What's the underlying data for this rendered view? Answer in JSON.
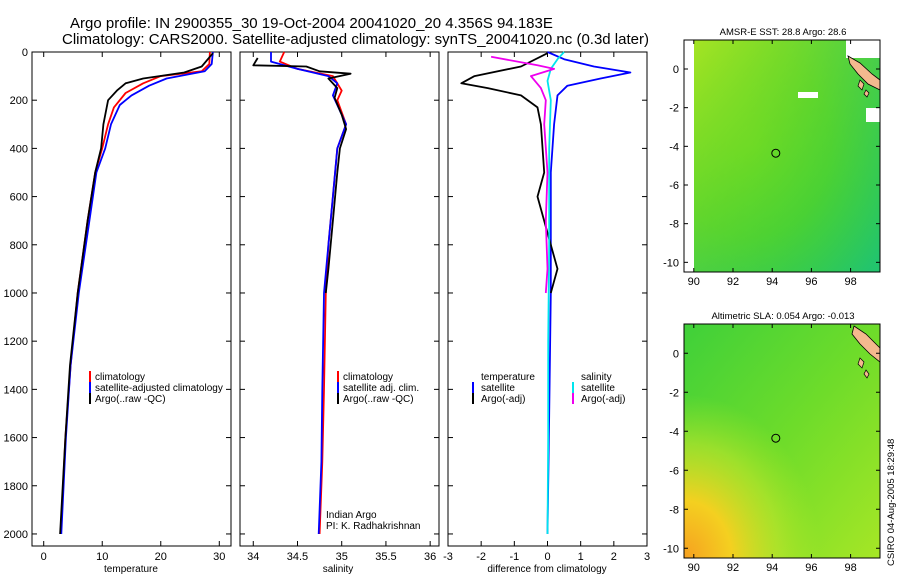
{
  "title": {
    "line1": "Argo profile: IN 2900355_30 19-Oct-2004 20041020_20 4.356S 94.183E",
    "line2": "Climatology: CARS2000. Satellite-adjusted climatology: synTS_20041020.nc (0.3d later)"
  },
  "credit": "CSIRO 04-Aug-2005 18:29:48",
  "colors": {
    "climatology": "#ff0000",
    "satellite": "#0000ff",
    "argo": "#000000",
    "salinity": "#00e5ee",
    "salinity_argo": "#ee00ee"
  },
  "chart_data": [
    {
      "id": "temperature",
      "type": "line",
      "xlabel": "temperature",
      "ylabel": "",
      "xlim": [
        -2,
        32
      ],
      "ylim": [
        2050,
        0
      ],
      "xticks": [
        0,
        10,
        20,
        30
      ],
      "xtick_labels": [
        "0",
        "10",
        "20",
        "30"
      ],
      "yticks": [
        0,
        200,
        400,
        600,
        800,
        1000,
        1200,
        1400,
        1600,
        1800,
        2000
      ],
      "ytick_labels": [
        "0",
        "200",
        "400",
        "600",
        "800",
        "1000",
        "1200",
        "1400",
        "1600",
        "1800",
        "2000"
      ],
      "legend": [
        "climatology",
        "satellite-adjusted climatology",
        "Argo(..raw -QC)"
      ],
      "series": [
        {
          "name": "climatology",
          "color": "#ff0000",
          "points": [
            [
              28.4,
              0
            ],
            [
              28.3,
              50
            ],
            [
              27.0,
              80
            ],
            [
              20.0,
              100
            ],
            [
              17.0,
              130
            ],
            [
              14.0,
              170
            ],
            [
              12.0,
              230
            ],
            [
              11.0,
              300
            ],
            [
              10.0,
              400
            ],
            [
              8.8,
              500
            ],
            [
              7.5,
              700
            ],
            [
              5.8,
              1000
            ],
            [
              4.6,
              1300
            ],
            [
              3.7,
              1600
            ],
            [
              2.9,
              2000
            ]
          ]
        },
        {
          "name": "satellite-adjusted climatology",
          "color": "#0000ff",
          "points": [
            [
              28.9,
              0
            ],
            [
              28.7,
              50
            ],
            [
              27.5,
              80
            ],
            [
              21.0,
              110
            ],
            [
              18.0,
              140
            ],
            [
              15.0,
              180
            ],
            [
              13.0,
              220
            ],
            [
              11.5,
              300
            ],
            [
              10.5,
              400
            ],
            [
              9.0,
              500
            ],
            [
              7.8,
              700
            ],
            [
              6.0,
              1000
            ],
            [
              4.6,
              1300
            ],
            [
              3.8,
              1600
            ],
            [
              3.0,
              2000
            ]
          ]
        },
        {
          "name": "Argo(..raw -QC)",
          "color": "#000000",
          "points": [
            [
              28.9,
              5
            ],
            [
              27.0,
              60
            ],
            [
              24.0,
              85
            ],
            [
              17.0,
              110
            ],
            [
              14.0,
              130
            ],
            [
              12.5,
              160
            ],
            [
              11.0,
              200
            ],
            [
              10.2,
              300
            ],
            [
              9.8,
              400
            ],
            [
              8.8,
              500
            ],
            [
              7.5,
              700
            ],
            [
              5.8,
              1000
            ],
            [
              4.5,
              1300
            ],
            [
              3.7,
              1600
            ],
            [
              2.8,
              2000
            ]
          ]
        }
      ]
    },
    {
      "id": "salinity",
      "type": "line",
      "xlabel": "salinity",
      "xlim": [
        33.85,
        36.1
      ],
      "ylim": [
        2050,
        0
      ],
      "xticks": [
        34,
        34.5,
        35,
        35.5,
        36
      ],
      "xtick_labels": [
        "34",
        "34.5",
        "35",
        "35.5",
        "36"
      ],
      "legend": [
        "climatology",
        "satellite adj. clim.",
        "Argo(..raw -QC)"
      ],
      "annotation": [
        "Indian Argo",
        "PI: K. Radhakrishnan"
      ],
      "series": [
        {
          "name": "climatology",
          "color": "#ff0000",
          "points": [
            [
              34.35,
              0
            ],
            [
              34.3,
              40
            ],
            [
              34.5,
              70
            ],
            [
              34.9,
              100
            ],
            [
              35.0,
              160
            ],
            [
              34.95,
              200
            ],
            [
              35.05,
              300
            ],
            [
              34.95,
              400
            ],
            [
              34.9,
              600
            ],
            [
              34.85,
              800
            ],
            [
              34.82,
              1000
            ],
            [
              34.8,
              1400
            ],
            [
              34.78,
              1700
            ],
            [
              34.75,
              2000
            ]
          ]
        },
        {
          "name": "satellite adj. clim.",
          "color": "#0000ff",
          "points": [
            [
              34.2,
              0
            ],
            [
              34.2,
              40
            ],
            [
              34.5,
              70
            ],
            [
              34.85,
              100
            ],
            [
              34.95,
              130
            ],
            [
              34.9,
              180
            ],
            [
              35.05,
              300
            ],
            [
              34.95,
              400
            ],
            [
              34.9,
              600
            ],
            [
              34.85,
              800
            ],
            [
              34.8,
              1000
            ],
            [
              34.78,
              1400
            ],
            [
              34.77,
              1700
            ],
            [
              34.74,
              2000
            ]
          ]
        },
        {
          "name": "Argo(..raw -QC)",
          "color": "#000000",
          "points": [
            [
              34.05,
              25
            ],
            [
              34.0,
              55
            ],
            [
              34.6,
              60
            ],
            [
              34.75,
              80
            ],
            [
              35.1,
              90
            ],
            [
              34.85,
              110
            ],
            [
              34.95,
              150
            ],
            [
              34.92,
              190
            ],
            [
              35.0,
              260
            ],
            [
              35.05,
              320
            ],
            [
              34.98,
              400
            ],
            [
              34.95,
              500
            ],
            [
              34.9,
              700
            ],
            [
              34.85,
              900
            ],
            [
              34.82,
              1000
            ]
          ]
        }
      ]
    },
    {
      "id": "difference",
      "type": "line",
      "xlabel": "difference from climatology",
      "xlim": [
        -3,
        3
      ],
      "ylim": [
        2050,
        0
      ],
      "xticks": [
        -3,
        -2,
        -1,
        0,
        1,
        2,
        3
      ],
      "xtick_labels": [
        "-3",
        "-2",
        "-1",
        "0",
        "1",
        "2",
        "3"
      ],
      "legend_left_title": "temperature",
      "legend_left": [
        "satellite",
        "Argo(-adj)"
      ],
      "legend_right_title": "salinity",
      "legend_right": [
        "satellite",
        "Argo(-adj)"
      ],
      "series": [
        {
          "name": "temperature satellite",
          "color": "#0000ff",
          "points": [
            [
              0,
              0
            ],
            [
              0.5,
              30
            ],
            [
              1.4,
              60
            ],
            [
              2.5,
              85
            ],
            [
              1.6,
              110
            ],
            [
              0.6,
              140
            ],
            [
              0.3,
              180
            ],
            [
              0.2,
              300
            ],
            [
              0.1,
              500
            ],
            [
              0.1,
              1000
            ],
            [
              0.05,
              1500
            ],
            [
              0,
              2000
            ]
          ]
        },
        {
          "name": "temperature Argo(-adj)",
          "color": "#000000",
          "points": [
            [
              0,
              5
            ],
            [
              -0.8,
              60
            ],
            [
              -2.2,
              100
            ],
            [
              -2.6,
              130
            ],
            [
              -1.8,
              150
            ],
            [
              -0.8,
              180
            ],
            [
              -0.3,
              230
            ],
            [
              -0.2,
              300
            ],
            [
              -0.1,
              500
            ],
            [
              -0.3,
              600
            ],
            [
              0.1,
              800
            ],
            [
              0.3,
              900
            ],
            [
              0.1,
              1000
            ]
          ]
        },
        {
          "name": "salinity satellite",
          "color": "#00e5ee",
          "points": [
            [
              0.5,
              0
            ],
            [
              0.3,
              30
            ],
            [
              0.1,
              70
            ],
            [
              0.0,
              120
            ],
            [
              0.1,
              200
            ],
            [
              0.05,
              400
            ],
            [
              0.05,
              800
            ],
            [
              0.02,
              1200
            ],
            [
              0.02,
              1600
            ],
            [
              0,
              2000
            ]
          ]
        },
        {
          "name": "salinity Argo(-adj)",
          "color": "#ee00ee",
          "points": [
            [
              -1.7,
              20
            ],
            [
              -0.3,
              55
            ],
            [
              0.2,
              70
            ],
            [
              -0.5,
              100
            ],
            [
              -0.2,
              150
            ],
            [
              -0.05,
              200
            ],
            [
              -0.1,
              300
            ],
            [
              0.0,
              500
            ],
            [
              -0.05,
              700
            ],
            [
              0.0,
              900
            ],
            [
              -0.05,
              1000
            ]
          ]
        }
      ]
    },
    {
      "id": "sst_map",
      "type": "heatmap",
      "title": "AMSR-E SST: 28.8 Argo: 28.6",
      "xlim": [
        89.5,
        99.5
      ],
      "ylim": [
        -10.5,
        1.5
      ],
      "xticks": [
        90,
        92,
        94,
        96,
        98
      ],
      "xtick_labels": [
        "90",
        "92",
        "94",
        "96",
        "98"
      ],
      "yticks": [
        0,
        -2,
        -4,
        -6,
        -8,
        -10
      ],
      "ytick_labels": [
        "0",
        "-2",
        "-4",
        "-6",
        "-8",
        "-10"
      ],
      "marker": [
        94.183,
        -4.356
      ]
    },
    {
      "id": "sla_map",
      "type": "heatmap",
      "title": "Altimetric SLA: 0.054 Argo: -0.013",
      "xlim": [
        89.5,
        99.5
      ],
      "ylim": [
        -10.5,
        1.5
      ],
      "xticks": [
        90,
        92,
        94,
        96,
        98
      ],
      "xtick_labels": [
        "90",
        "92",
        "94",
        "96",
        "98"
      ],
      "yticks": [
        0,
        -2,
        -4,
        -6,
        -8,
        -10
      ],
      "ytick_labels": [
        "0",
        "-2",
        "-4",
        "-6",
        "-8",
        "-10"
      ],
      "marker": [
        94.183,
        -4.356
      ]
    }
  ]
}
